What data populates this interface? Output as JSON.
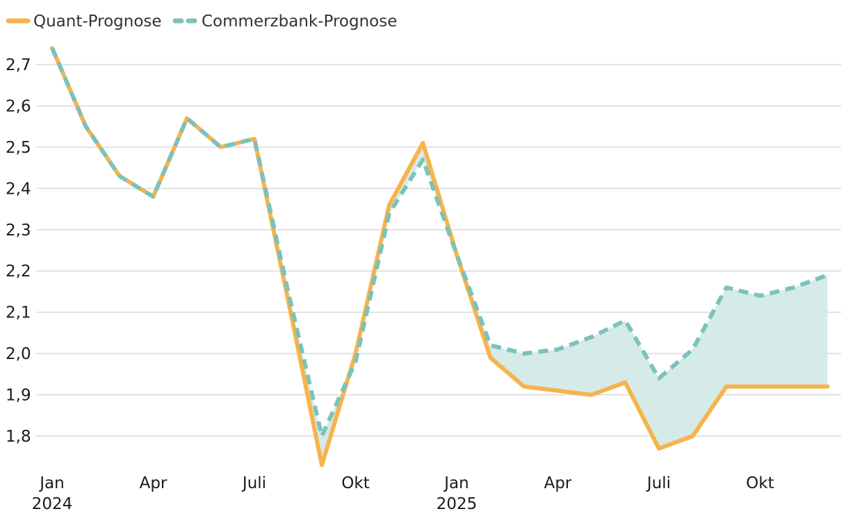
{
  "colors": {
    "quant": "#F7B34C",
    "commerzbank": "#7BC2BA",
    "fill": "#D4EBE8",
    "grid": "#d9d9d9",
    "text": "#1a1a1a"
  },
  "legend": [
    {
      "label": "Quant-Prognose",
      "style": "solid"
    },
    {
      "label": "Commerzbank-Prognose",
      "style": "dashed"
    }
  ],
  "chart_data": {
    "type": "line",
    "y_ticks": [
      "2,7",
      "2,6",
      "2,5",
      "2,4",
      "2,3",
      "2,2",
      "2,1",
      "2,0",
      "1,9",
      "1,8"
    ],
    "y_tick_values": [
      2.7,
      2.6,
      2.5,
      2.4,
      2.3,
      2.2,
      2.1,
      2.0,
      1.9,
      1.8
    ],
    "x_ticks": [
      {
        "month": 0,
        "line1": "Jan",
        "line2": "2024"
      },
      {
        "month": 3,
        "line1": "Apr",
        "line2": ""
      },
      {
        "month": 6,
        "line1": "Juli",
        "line2": ""
      },
      {
        "month": 9,
        "line1": "Okt",
        "line2": ""
      },
      {
        "month": 12,
        "line1": "Jan",
        "line2": "2025"
      },
      {
        "month": 15,
        "line1": "Apr",
        "line2": ""
      },
      {
        "month": 18,
        "line1": "Juli",
        "line2": ""
      },
      {
        "month": 21,
        "line1": "Okt",
        "line2": ""
      }
    ],
    "months": [
      "2024-01",
      "2024-02",
      "2024-03",
      "2024-04",
      "2024-05",
      "2024-06",
      "2024-07",
      "2024-08",
      "2024-09",
      "2024-10",
      "2024-11",
      "2024-12",
      "2025-01",
      "2025-02",
      "2025-03",
      "2025-04",
      "2025-05",
      "2025-06",
      "2025-07",
      "2025-08",
      "2025-09",
      "2025-10",
      "2025-11",
      "2025-12"
    ],
    "series": [
      {
        "name": "Quant-Prognose",
        "values": [
          2.74,
          2.55,
          2.43,
          2.38,
          2.57,
          2.5,
          2.52,
          2.13,
          1.73,
          2.0,
          2.36,
          2.51,
          2.24,
          1.99,
          1.92,
          1.91,
          1.9,
          1.93,
          1.77,
          1.8,
          1.92,
          1.92,
          1.92,
          1.92
        ]
      },
      {
        "name": "Commerzbank-Prognose",
        "values": [
          2.74,
          2.55,
          2.43,
          2.38,
          2.57,
          2.5,
          2.52,
          2.15,
          1.8,
          1.98,
          2.34,
          2.47,
          2.24,
          2.02,
          2.0,
          2.01,
          2.04,
          2.08,
          1.94,
          2.01,
          2.16,
          2.14,
          2.16,
          2.19
        ]
      }
    ],
    "ylim": [
      1.68,
      2.76
    ],
    "grid": true,
    "legend_position": "top-left"
  }
}
